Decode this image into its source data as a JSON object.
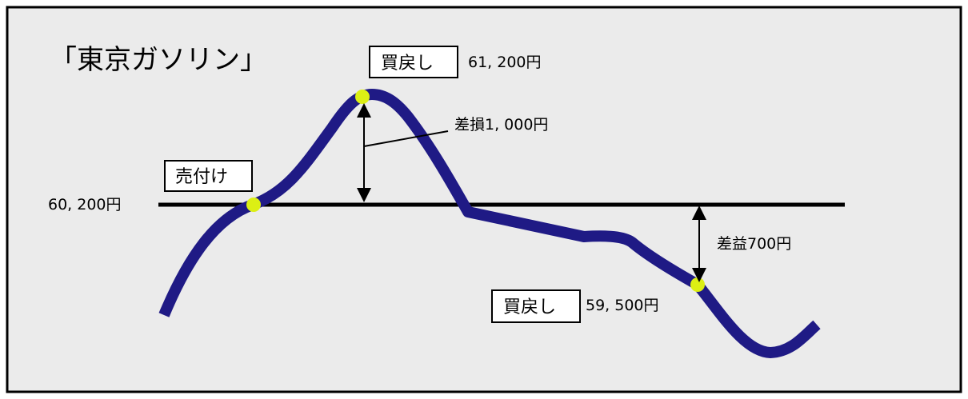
{
  "title": "「東京ガソリン」",
  "colors": {
    "background": "#ebebeb",
    "frame": "#000000",
    "curve": "#1f1a85",
    "marker": "#dcef14",
    "baseline": "#000000"
  },
  "price_line": {
    "label": "60, 200円"
  },
  "points": {
    "sell": {
      "box_label": "売付け"
    },
    "buyback_high": {
      "box_label": "買戻し",
      "price_label": "61, 200円"
    },
    "buyback_low": {
      "box_label": "買戻し",
      "price_label": "59, 500円"
    }
  },
  "annotations": {
    "loss": "差損1, 000円",
    "profit": "差益700円"
  }
}
